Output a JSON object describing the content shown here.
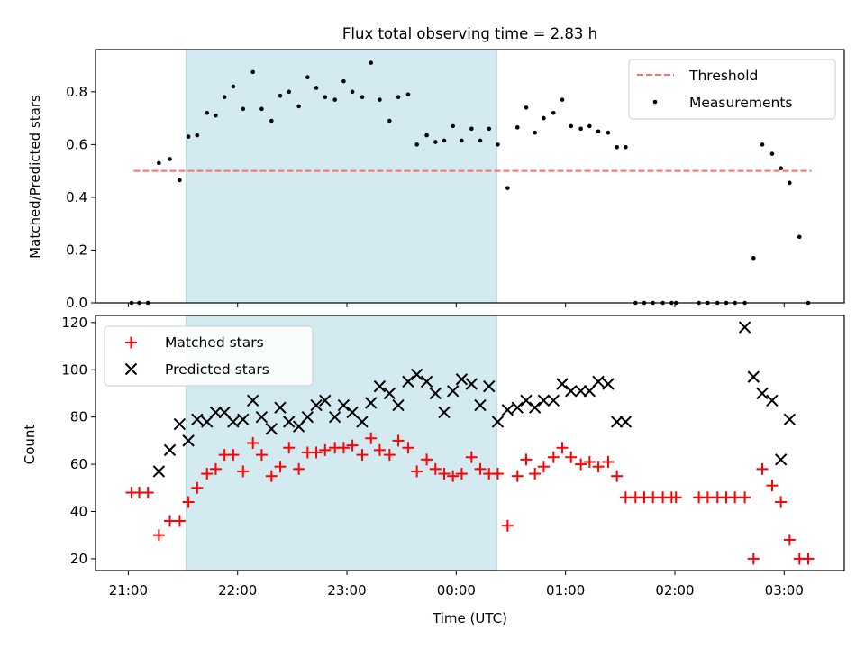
{
  "chart_data": [
    {
      "type": "scatter",
      "title": "Flux total observing time = 2.83 h",
      "xlabel": "",
      "ylabel": "Matched/Predicted stars",
      "xlim": [
        -0.3,
        6.55
      ],
      "ylim": [
        0,
        0.96
      ],
      "yticks": [
        0.0,
        0.2,
        0.4,
        0.6,
        0.8
      ],
      "ytick_labels": [
        "0.0",
        "0.2",
        "0.4",
        "0.6",
        "0.8"
      ],
      "shaded_interval": [
        0.53,
        3.37
      ],
      "shade_color": "#d3eaf0",
      "legend_position": "upper right",
      "threshold": {
        "name": "Threshold",
        "y": 0.5,
        "x_start": 0.05,
        "x_end": 6.25,
        "color": "#ff6e6e"
      },
      "series": [
        {
          "name": "Measurements",
          "color": "#000000",
          "x": [
            0.03,
            0.1,
            0.18,
            0.28,
            0.38,
            0.47,
            0.55,
            0.63,
            0.72,
            0.8,
            0.88,
            0.96,
            1.05,
            1.14,
            1.22,
            1.31,
            1.39,
            1.47,
            1.56,
            1.64,
            1.72,
            1.8,
            1.89,
            1.97,
            2.05,
            2.14,
            2.22,
            2.3,
            2.39,
            2.47,
            2.56,
            2.64,
            2.73,
            2.81,
            2.89,
            2.97,
            3.05,
            3.14,
            3.22,
            3.3,
            3.38,
            3.47,
            3.56,
            3.64,
            3.72,
            3.8,
            3.89,
            3.97,
            4.05,
            4.14,
            4.22,
            4.3,
            4.39,
            4.47,
            4.55,
            4.64,
            4.72,
            4.8,
            4.89,
            4.97,
            5.01,
            5.22,
            5.3,
            5.39,
            5.47,
            5.55,
            5.64,
            5.72,
            5.8,
            5.89,
            5.97,
            6.05,
            6.14,
            6.22
          ],
          "y": [
            0.0,
            0.0,
            0.0,
            0.53,
            0.545,
            0.465,
            0.63,
            0.635,
            0.72,
            0.71,
            0.78,
            0.82,
            0.735,
            0.875,
            0.735,
            0.69,
            0.785,
            0.8,
            0.745,
            0.855,
            0.815,
            0.78,
            0.77,
            0.84,
            0.8,
            0.78,
            0.91,
            0.77,
            0.69,
            0.78,
            0.79,
            0.6,
            0.635,
            0.61,
            0.615,
            0.67,
            0.615,
            0.66,
            0.615,
            0.66,
            0.6,
            0.435,
            0.665,
            0.74,
            0.645,
            0.7,
            0.72,
            0.77,
            0.67,
            0.66,
            0.67,
            0.65,
            0.645,
            0.59,
            0.59,
            0.0,
            0.0,
            0.0,
            0.0,
            0.0,
            0.0,
            0.0,
            0.0,
            0.0,
            0.0,
            0.0,
            0.0,
            0.17,
            0.6,
            0.565,
            0.51,
            0.455,
            0.25,
            0.0
          ]
        }
      ]
    },
    {
      "type": "scatter",
      "title": "",
      "xlabel": "Time (UTC)",
      "ylabel": "Count",
      "xlim": [
        -0.3,
        6.55
      ],
      "ylim": [
        15,
        123
      ],
      "xticks": [
        0,
        1,
        2,
        3,
        4,
        5,
        6
      ],
      "xtick_labels": [
        "21:00",
        "22:00",
        "23:00",
        "00:00",
        "01:00",
        "02:00",
        "03:00"
      ],
      "yticks": [
        20,
        40,
        60,
        80,
        100,
        120
      ],
      "ytick_labels": [
        "20",
        "40",
        "60",
        "80",
        "100",
        "120"
      ],
      "shaded_interval": [
        0.53,
        3.37
      ],
      "shade_color": "#d3eaf0",
      "legend_position": "upper left",
      "series": [
        {
          "name": "Matched stars",
          "marker": "+",
          "color": "#ff0000",
          "x": [
            0.03,
            0.1,
            0.18,
            0.28,
            0.38,
            0.47,
            0.55,
            0.63,
            0.72,
            0.8,
            0.88,
            0.96,
            1.05,
            1.14,
            1.22,
            1.31,
            1.39,
            1.47,
            1.56,
            1.64,
            1.72,
            1.8,
            1.89,
            1.97,
            2.05,
            2.14,
            2.22,
            2.3,
            2.39,
            2.47,
            2.56,
            2.64,
            2.73,
            2.81,
            2.89,
            2.97,
            3.05,
            3.14,
            3.22,
            3.3,
            3.38,
            3.47,
            3.56,
            3.64,
            3.72,
            3.8,
            3.89,
            3.97,
            4.05,
            4.14,
            4.22,
            4.3,
            4.39,
            4.47,
            4.55,
            4.64,
            4.72,
            4.8,
            4.89,
            4.97,
            5.01,
            5.22,
            5.3,
            5.39,
            5.47,
            5.55,
            5.64,
            5.72,
            5.8,
            5.89,
            5.97,
            6.05,
            6.14,
            6.22
          ],
          "y": [
            48,
            48,
            48,
            30,
            36,
            36,
            44,
            50,
            56,
            58,
            64,
            64,
            57,
            69,
            64,
            55,
            59,
            67,
            58,
            65,
            65,
            66,
            67,
            67,
            68,
            64,
            71,
            66,
            64,
            70,
            67,
            57,
            62,
            58,
            56,
            55,
            56,
            63,
            58,
            56,
            56,
            34,
            55,
            62,
            56,
            59,
            63,
            67,
            63,
            60,
            61,
            59,
            61,
            55,
            46,
            46,
            46,
            46,
            46,
            46,
            46,
            46,
            46,
            46,
            46,
            46,
            46,
            20,
            58,
            51,
            44,
            28,
            20,
            20
          ]
        },
        {
          "name": "Predicted stars",
          "marker": "x",
          "color": "#000000",
          "x": [
            0.28,
            0.38,
            0.47,
            0.55,
            0.63,
            0.72,
            0.8,
            0.88,
            0.96,
            1.05,
            1.14,
            1.22,
            1.31,
            1.39,
            1.47,
            1.56,
            1.64,
            1.72,
            1.8,
            1.89,
            1.97,
            2.05,
            2.14,
            2.22,
            2.3,
            2.39,
            2.47,
            2.56,
            2.64,
            2.73,
            2.81,
            2.89,
            2.97,
            3.05,
            3.14,
            3.22,
            3.3,
            3.38,
            3.47,
            3.56,
            3.64,
            3.72,
            3.8,
            3.89,
            3.97,
            4.05,
            4.14,
            4.22,
            4.3,
            4.39,
            4.47,
            4.55,
            5.64,
            5.72,
            5.8,
            5.89,
            5.97,
            6.05
          ],
          "y": [
            57,
            66,
            77,
            70,
            79,
            78,
            82,
            82,
            78,
            79,
            87,
            80,
            75,
            84,
            78,
            76,
            80,
            85,
            87,
            80,
            85,
            82,
            78,
            86,
            93,
            90,
            85,
            95,
            98,
            95,
            90,
            82,
            91,
            96,
            94,
            85,
            93,
            78,
            83,
            84,
            87,
            84,
            87,
            87,
            94,
            91,
            91,
            91,
            95,
            94,
            78,
            78,
            118,
            97,
            90,
            87,
            62,
            79
          ]
        }
      ]
    }
  ]
}
